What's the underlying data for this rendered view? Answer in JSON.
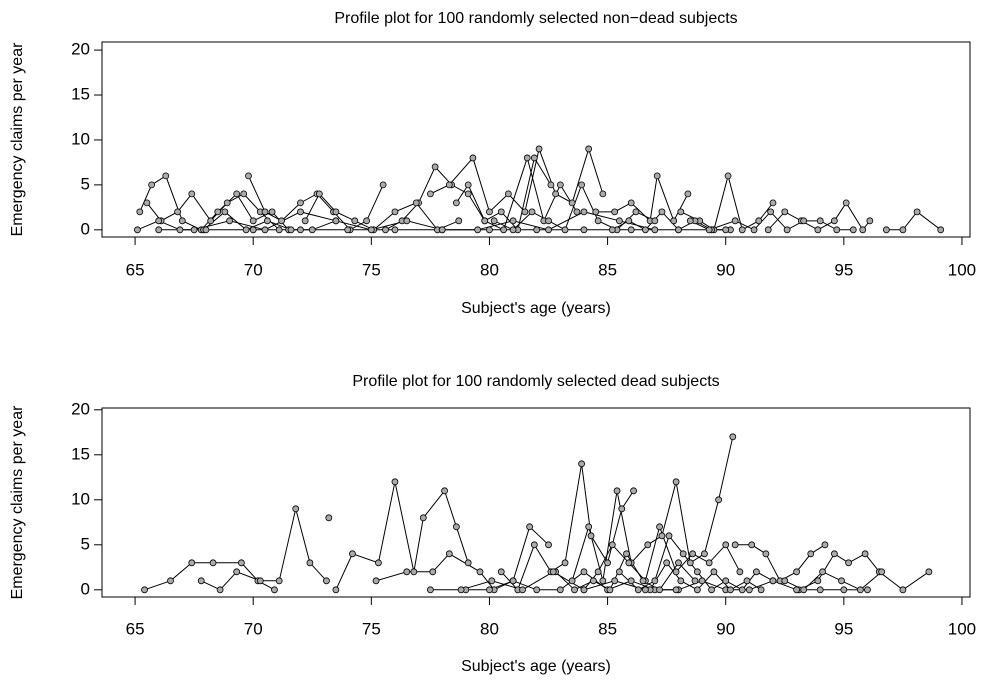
{
  "chart_data": [
    {
      "type": "line",
      "title": "Profile plot for 100 randomly selected non−dead subjects",
      "x_label": "Subject's age (years)",
      "y_label": "Emergency claims per year",
      "xlim": [
        63.6,
        100.34
      ],
      "ylim": [
        -0.8,
        20.9
      ],
      "xticks": [
        65,
        70,
        75,
        80,
        85,
        90,
        95,
        100
      ],
      "yticks": [
        0,
        5,
        10,
        15,
        20
      ],
      "line_color": "#000000",
      "marker_fill": "#aaaaaa",
      "series": [
        {
          "x": [
            65.2,
            65.7,
            66.3,
            67,
            67.8,
            68.5,
            69.3,
            70,
            70.8,
            71.5
          ],
          "values": [
            2,
            5,
            6,
            1,
            0,
            2,
            4,
            1,
            2,
            0
          ]
        },
        {
          "x": [
            65.5,
            66.1,
            66.8,
            67.4,
            68.2,
            68.9,
            69.6,
            70.3,
            71.1
          ],
          "values": [
            3,
            1,
            2,
            4,
            1,
            3,
            4,
            2,
            0
          ]
        },
        {
          "x": [
            69.8,
            70.5,
            71.2,
            72,
            72.7,
            73.4,
            74.1,
            74.8,
            75.5
          ],
          "values": [
            6,
            2,
            1,
            3,
            4,
            2,
            0,
            1,
            5
          ]
        },
        {
          "x": [
            75.6,
            76.3,
            77,
            77.7,
            78.4,
            79.1,
            79.8,
            80.5,
            81.2,
            81.9,
            82.6
          ],
          "values": [
            0,
            1,
            3,
            7,
            5,
            4,
            1,
            2,
            0,
            8,
            5
          ]
        },
        {
          "x": [
            77.5,
            78.3,
            79.3,
            80,
            80.8,
            81.5,
            82.1,
            82.8,
            83.5,
            84.2,
            84.8
          ],
          "values": [
            4,
            5,
            8,
            2,
            4,
            2,
            9,
            4,
            3,
            9,
            4
          ]
        },
        {
          "x": [
            78.6,
            79.1,
            79.8,
            80.6,
            81.6,
            82.3,
            83,
            83.7
          ],
          "values": [
            3,
            5,
            1,
            0,
            8,
            1,
            5,
            2
          ]
        },
        {
          "x": [
            84.5,
            85.3,
            86,
            86.8,
            87.1,
            87.8,
            88.4
          ],
          "values": [
            2,
            2,
            3,
            1,
            6,
            1,
            4
          ]
        },
        {
          "x": [
            88.1,
            88.9,
            89.5,
            90.1,
            90.7,
            91.4,
            92
          ],
          "values": [
            2,
            1,
            0,
            6,
            0,
            1,
            3
          ]
        },
        {
          "x": [
            91.8,
            92.5,
            93.2,
            93.9,
            94.6,
            95.1,
            95.8,
            96.1
          ],
          "values": [
            0,
            2,
            1,
            0,
            1,
            3,
            0,
            1
          ]
        },
        {
          "x": [
            96.8,
            97.5,
            98.1,
            99.1
          ],
          "values": [
            0,
            0,
            2,
            0
          ]
        },
        {
          "x": [
            65.1,
            66,
            66.9,
            67.9,
            68.8,
            69.7,
            70.6,
            71.6,
            72.5,
            73.5
          ],
          "values": [
            0,
            1,
            0,
            0,
            2,
            0,
            1,
            0,
            0,
            1
          ]
        },
        {
          "x": [
            72.2,
            72.8,
            73.5,
            74.3,
            75.1,
            76,
            76.9,
            77.8,
            78.7
          ],
          "values": [
            1,
            4,
            2,
            1,
            0,
            2,
            3,
            0,
            1
          ]
        },
        {
          "x": [
            80.2,
            81,
            81.8,
            82.5,
            83.2,
            83.9,
            84.6,
            85.4,
            86.2,
            87
          ],
          "values": [
            1,
            0,
            2,
            1,
            0,
            5,
            1,
            0,
            2,
            1
          ]
        },
        {
          "x": [
            85.2,
            85.9,
            86.6,
            87.3,
            88,
            88.7,
            89.4,
            90.2
          ],
          "values": [
            0,
            1,
            0,
            2,
            0,
            1,
            0,
            0
          ]
        },
        {
          "x": [
            88.5,
            89.3,
            90.4,
            91.2,
            91.9,
            92.6,
            93.3,
            94,
            94.7,
            95.4
          ],
          "values": [
            1,
            0,
            1,
            0,
            2,
            0,
            1,
            1,
            0,
            0
          ]
        },
        {
          "x": [
            66,
            68,
            70,
            72,
            74,
            76,
            78,
            80,
            82,
            84,
            86,
            88,
            90
          ],
          "values": [
            0,
            0,
            0,
            0,
            0,
            0,
            0,
            0,
            0,
            0,
            0,
            0,
            0
          ]
        },
        {
          "x": [
            67.5,
            69,
            70.5,
            72,
            73.5,
            75,
            76.5,
            78,
            79.5,
            81,
            82.5,
            84,
            85.5,
            87
          ],
          "values": [
            0,
            1,
            0,
            2,
            1,
            0,
            1,
            0,
            0,
            1,
            0,
            2,
            1,
            0
          ]
        }
      ]
    },
    {
      "type": "line",
      "title": "Profile plot for 100 randomly selected dead subjects",
      "x_label": "Subject's age (years)",
      "y_label": "Emergency claims per year",
      "xlim": [
        63.6,
        100.34
      ],
      "ylim": [
        -0.8,
        20.2
      ],
      "xticks": [
        65,
        70,
        75,
        80,
        85,
        90,
        95,
        100
      ],
      "yticks": [
        0,
        5,
        10,
        15,
        20
      ],
      "line_color": "#000000",
      "marker_fill": "#aaaaaa",
      "series": [
        {
          "x": [
            65.4,
            66.5,
            67.4,
            68.3,
            69.5,
            70.2,
            70.9
          ],
          "values": [
            0,
            1,
            3,
            3,
            3,
            1,
            0
          ]
        },
        {
          "x": [
            67.8,
            68.6,
            69.3,
            70.3,
            71.1,
            71.8,
            72.4,
            73.1
          ],
          "values": [
            1,
            0,
            2,
            1,
            1,
            9,
            3,
            1
          ]
        },
        {
          "x": [
            73.2
          ],
          "values": [
            8
          ]
        },
        {
          "x": [
            73.5,
            74.2,
            75.3,
            76,
            76.8,
            77.2,
            78.1,
            78.6,
            79.1
          ],
          "values": [
            0,
            4,
            3,
            12,
            2,
            8,
            11,
            7,
            3
          ]
        },
        {
          "x": [
            75.2,
            76.5,
            77.6,
            78.3,
            79.6,
            80.2,
            81,
            81.7,
            82.5
          ],
          "values": [
            1,
            2,
            2,
            4,
            2,
            0,
            1,
            7,
            5
          ]
        },
        {
          "x": [
            80.5,
            81.2,
            81.9,
            82.6,
            83.2,
            83.9,
            84.3,
            85,
            85.6,
            86.1
          ],
          "values": [
            2,
            0,
            5,
            2,
            3,
            14,
            6,
            3,
            9,
            11
          ]
        },
        {
          "x": [
            83.5,
            84.2,
            84.8,
            85.4,
            86,
            86.7,
            87.3,
            87.9,
            88.5,
            89.1,
            89.7,
            90.3
          ],
          "values": [
            1,
            7,
            1,
            11,
            3,
            5,
            6,
            12,
            3,
            4,
            10,
            17
          ]
        },
        {
          "x": [
            84,
            84.6,
            85.2,
            85.9,
            86.6,
            87.2,
            87.9,
            88.6,
            89.3,
            90,
            90.6
          ],
          "values": [
            0,
            2,
            5,
            3,
            1,
            7,
            2,
            4,
            3,
            5,
            2
          ]
        },
        {
          "x": [
            90.4,
            91.1,
            91.7,
            92.3,
            93,
            93.6,
            94.2
          ],
          "values": [
            5,
            5,
            4,
            1,
            2,
            4,
            5
          ]
        },
        {
          "x": [
            93.1,
            93.9,
            94.6,
            95.2,
            95.9,
            96.5,
            97.5,
            98.6
          ],
          "values": [
            0,
            1,
            4,
            3,
            4,
            2,
            0,
            2
          ]
        },
        {
          "x": [
            79,
            80,
            81,
            82,
            83,
            84,
            85,
            86,
            87,
            88,
            89,
            90,
            91,
            92,
            93,
            94,
            95,
            96
          ],
          "values": [
            0,
            0,
            1,
            0,
            0,
            2,
            0,
            1,
            0,
            0,
            1,
            0,
            0,
            1,
            0,
            0,
            0,
            0
          ]
        },
        {
          "x": [
            85.5,
            86.3,
            87,
            87.6,
            88.2,
            88.8,
            89.4,
            90,
            90.7,
            91.3,
            92
          ],
          "values": [
            2,
            0,
            1,
            6,
            4,
            2,
            0,
            1,
            0,
            2,
            1
          ]
        },
        {
          "x": [
            82.8,
            83.6,
            84.4,
            85.1,
            85.8,
            86.5,
            87.2,
            88,
            88.7
          ],
          "values": [
            2,
            0,
            1,
            0,
            4,
            1,
            0,
            3,
            1
          ]
        },
        {
          "x": [
            86.8,
            87.5,
            88.1,
            88.8,
            89.5,
            90.2,
            90.9,
            91.5
          ],
          "values": [
            0,
            3,
            1,
            0,
            2,
            0,
            1,
            0
          ]
        },
        {
          "x": [
            77.5,
            78.8,
            80.1,
            81.4,
            82.7,
            84,
            85.3,
            86.6,
            87.9
          ],
          "values": [
            0,
            0,
            1,
            0,
            2,
            0,
            1,
            0,
            0
          ]
        },
        {
          "x": [
            92.5,
            93.3,
            94.1,
            94.9,
            95.7,
            96.6
          ],
          "values": [
            1,
            0,
            2,
            1,
            0,
            2
          ]
        }
      ]
    }
  ]
}
